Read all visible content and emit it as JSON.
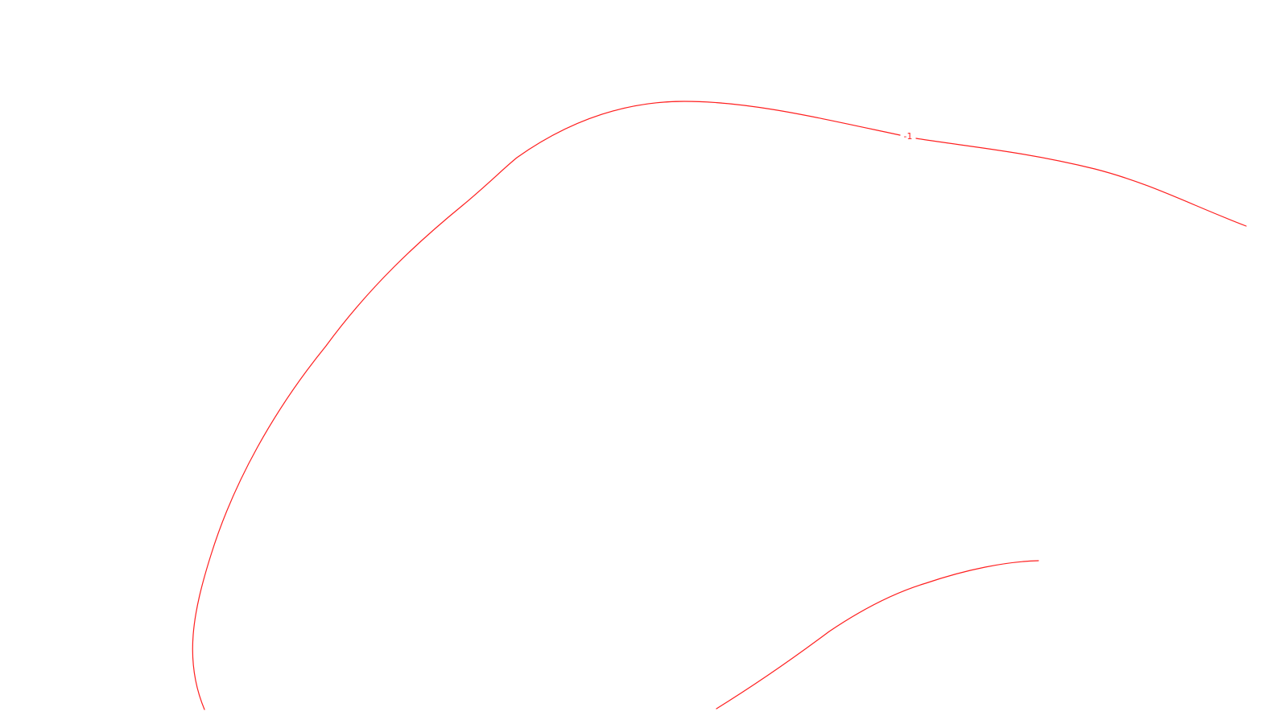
{
  "map": {
    "background_color": "#ffffff",
    "line_color": "#ff2020",
    "contours": [
      {
        "name": "contour-line-upper",
        "label": "-1"
      },
      {
        "name": "contour-line-lower",
        "label": ""
      }
    ]
  }
}
